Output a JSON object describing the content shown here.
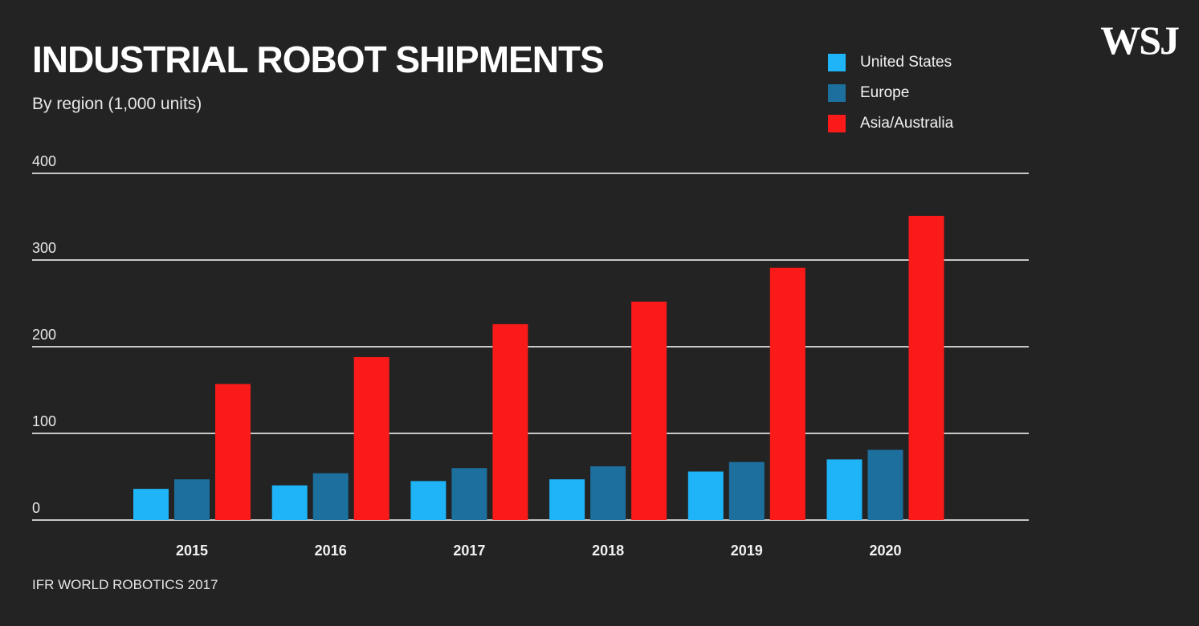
{
  "header": {
    "title": "INDUSTRIAL ROBOT SHIPMENTS",
    "subtitle": "By region (1,000 units)",
    "logo": "WSJ"
  },
  "footer": {
    "source": "IFR WORLD ROBOTICS 2017"
  },
  "colors": {
    "background": "#232323",
    "gridline": "#c8c8c8",
    "united_states": "#1eb4f7",
    "europe": "#1d6f9e",
    "asia_australia": "#fb1a1a"
  },
  "chart_data": {
    "type": "bar",
    "title": "INDUSTRIAL ROBOT SHIPMENTS",
    "subtitle": "By region (1,000 units)",
    "xlabel": "",
    "ylabel": "",
    "categories": [
      "2015",
      "2016",
      "2017",
      "2018",
      "2019",
      "2020"
    ],
    "series": [
      {
        "name": "United States",
        "color": "#1eb4f7",
        "values": [
          36,
          40,
          45,
          47,
          56,
          70
        ]
      },
      {
        "name": "Europe",
        "color": "#1d6f9e",
        "values": [
          47,
          54,
          60,
          62,
          67,
          81
        ]
      },
      {
        "name": "Asia/Australia",
        "color": "#fb1a1a",
        "values": [
          157,
          188,
          226,
          252,
          291,
          351
        ]
      }
    ],
    "ylim": [
      0,
      400
    ],
    "yticks": [
      "0",
      "100",
      "200",
      "300",
      "400"
    ],
    "grid": true,
    "legend_position": "top-right",
    "source": "IFR WORLD ROBOTICS 2017"
  }
}
